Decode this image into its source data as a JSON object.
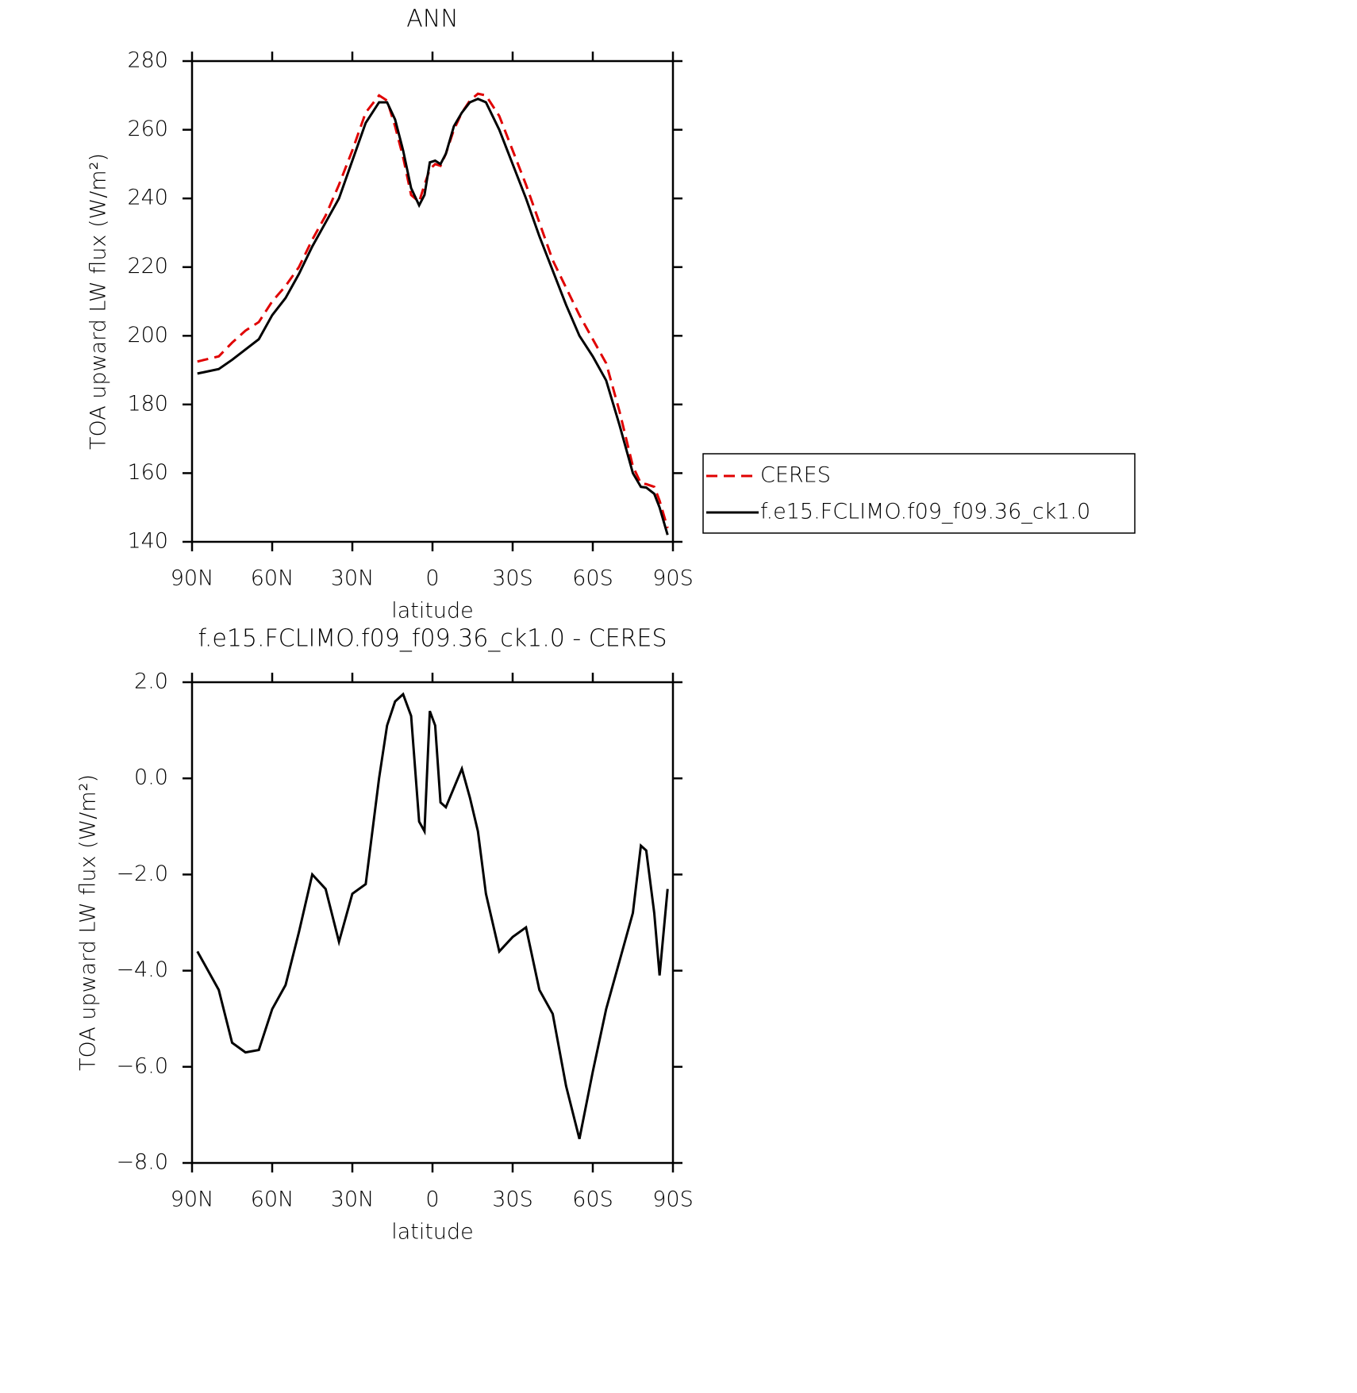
{
  "chart_data": [
    {
      "type": "line",
      "title": "ANN",
      "x_label": "latitude",
      "y_label": "TOA upward LW flux (W/m²)",
      "x": [
        88,
        80,
        75,
        70,
        65,
        60,
        55,
        50,
        45,
        40,
        35,
        30,
        25,
        20,
        17,
        14,
        11,
        8,
        5,
        3,
        1,
        -1,
        -3,
        -5,
        -8,
        -11,
        -14,
        -17,
        -20,
        -25,
        -30,
        -35,
        -40,
        -45,
        -50,
        -55,
        -60,
        -65,
        -70,
        -75,
        -78,
        -80,
        -83,
        -85,
        -88
      ],
      "series": [
        {
          "name": "CERES",
          "color": "#e00000",
          "line_style": "dashed",
          "values": [
            192.5,
            194,
            198,
            201.5,
            204,
            210,
            214.5,
            220,
            228,
            235,
            244,
            254,
            265,
            270,
            268.5,
            261,
            252,
            241,
            239,
            244,
            248.5,
            250,
            249.5,
            253,
            260,
            265,
            268.5,
            270.5,
            270,
            264,
            254,
            244,
            233,
            222,
            214,
            206,
            199,
            192,
            178,
            162,
            157,
            156.8,
            156,
            152,
            144
          ]
        },
        {
          "name": "f.e15.FCLIMO.f09_f09.36_ck1.0",
          "color": "#000000",
          "line_style": "solid",
          "values": [
            189,
            190.3,
            193,
            196,
            199,
            206,
            211,
            218,
            226,
            233,
            240,
            251,
            262,
            268,
            268,
            263,
            254,
            243,
            238,
            241,
            250.5,
            251,
            250,
            253,
            261,
            265,
            268,
            269,
            268,
            260,
            250,
            240,
            229,
            219,
            209,
            200,
            194,
            187,
            174,
            160,
            156,
            155.8,
            154,
            150,
            142
          ]
        }
      ],
      "xlim": [
        90,
        -90
      ],
      "xticks": [
        {
          "value": 90,
          "label": "90N"
        },
        {
          "value": 60,
          "label": "60N"
        },
        {
          "value": 30,
          "label": "30N"
        },
        0,
        {
          "value": -30,
          "label": "30S"
        },
        {
          "value": -60,
          "label": "60S"
        },
        {
          "value": -90,
          "label": "90S"
        }
      ],
      "ylim": [
        140,
        280
      ],
      "yticks": [
        140,
        160,
        180,
        200,
        220,
        240,
        260,
        280
      ],
      "legend": "right"
    },
    {
      "type": "line",
      "title": "f.e15.FCLIMO.f09_f09.36_ck1.0 - CERES",
      "x_label": "latitude",
      "y_label": "TOA upward LW flux (W/m²)",
      "x": [
        88,
        80,
        75,
        70,
        65,
        60,
        55,
        50,
        45,
        40,
        35,
        30,
        25,
        20,
        17,
        14,
        11,
        8,
        5,
        3,
        1,
        -1,
        -3,
        -5,
        -8,
        -11,
        -14,
        -17,
        -20,
        -25,
        -30,
        -35,
        -40,
        -45,
        -50,
        -55,
        -60,
        -65,
        -70,
        -75,
        -78,
        -80,
        -83,
        -85,
        -88
      ],
      "color": "#000000",
      "values": [
        -3.6,
        -4.4,
        -5.5,
        -5.7,
        -5.65,
        -4.8,
        -4.3,
        -3.2,
        -2.0,
        -2.3,
        -3.4,
        -2.4,
        -2.2,
        0.0,
        1.1,
        1.6,
        1.75,
        1.3,
        -0.9,
        -1.1,
        1.4,
        1.1,
        -0.5,
        -0.6,
        -0.2,
        0.2,
        -0.4,
        -1.1,
        -2.4,
        -3.6,
        -3.3,
        -3.1,
        -4.4,
        -4.9,
        -6.4,
        -7.5,
        -6.1,
        -4.8,
        -3.8,
        -2.8,
        -1.4,
        -1.5,
        -2.8,
        -4.1,
        -2.3
      ],
      "xlim": [
        90,
        -90
      ],
      "xticks": [
        {
          "value": 90,
          "label": "90N"
        },
        {
          "value": 60,
          "label": "60N"
        },
        {
          "value": 30,
          "label": "30N"
        },
        0,
        {
          "value": -30,
          "label": "30S"
        },
        {
          "value": -60,
          "label": "60S"
        },
        {
          "value": -90,
          "label": "90S"
        }
      ],
      "ylim": [
        -8,
        2
      ],
      "yticks": [
        {
          "value": -8,
          "label": "−8.0"
        },
        {
          "value": -6,
          "label": "−6.0"
        },
        {
          "value": -4,
          "label": "−4.0"
        },
        {
          "value": -2,
          "label": "−2.0"
        },
        {
          "value": 0,
          "label": "0.0"
        },
        {
          "value": 2,
          "label": "2.0"
        }
      ]
    }
  ]
}
